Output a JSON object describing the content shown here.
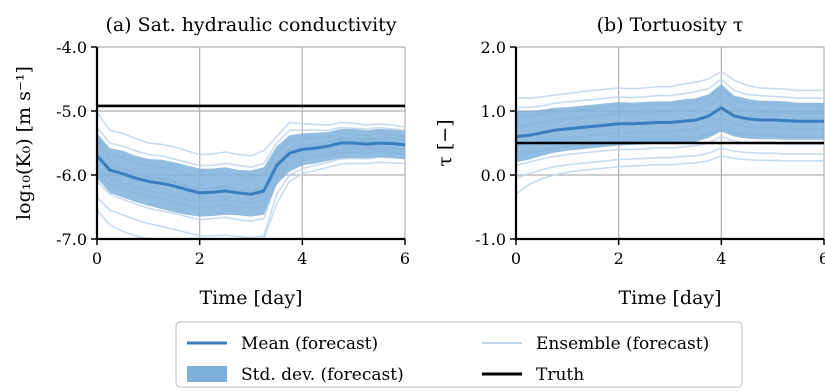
{
  "colors": {
    "mean": "#3a7ebf",
    "std": "#7fb0db",
    "ensemble": "#c3d7ee",
    "truth": "#000000",
    "grid": "#b0b0b0"
  },
  "legend": {
    "mean": "Mean (forecast)",
    "ensemble": "Ensemble (forecast)",
    "std": "Std. dev. (forecast)",
    "truth": "Truth"
  },
  "chart_data": [
    {
      "type": "line",
      "title": "(a) Sat. hydraulic conductivity",
      "xlabel": "Time [day]",
      "ylabel": "log₁₀(K₀)  [m s⁻¹]",
      "xlim": [
        0,
        6
      ],
      "ylim": [
        -7.0,
        -4.0
      ],
      "xticks": [
        "0",
        "2",
        "4",
        "6"
      ],
      "xtick_values": [
        0,
        2,
        4,
        6
      ],
      "yticks": [
        "-4.0",
        "-5.0",
        "-6.0",
        "-7.0"
      ],
      "ytick_values": [
        -4.0,
        -5.0,
        -6.0,
        -7.0
      ],
      "grid": true,
      "x": [
        0,
        0.25,
        0.5,
        0.75,
        1.0,
        1.25,
        1.5,
        1.75,
        2.0,
        2.25,
        2.5,
        2.75,
        3.0,
        3.25,
        3.5,
        3.75,
        4.0,
        4.25,
        4.5,
        4.75,
        5.0,
        5.25,
        5.5,
        5.75,
        6.0
      ],
      "series": [
        {
          "name": "Mean (forecast)",
          "values": [
            -5.7,
            -5.92,
            -5.98,
            -6.05,
            -6.1,
            -6.13,
            -6.17,
            -6.23,
            -6.28,
            -6.27,
            -6.25,
            -6.28,
            -6.3,
            -6.25,
            -5.85,
            -5.66,
            -5.6,
            -5.58,
            -5.55,
            -5.5,
            -5.5,
            -5.52,
            -5.5,
            -5.51,
            -5.53
          ]
        },
        {
          "name": "Std. dev. (forecast)",
          "lower": [
            -6.05,
            -6.28,
            -6.35,
            -6.42,
            -6.48,
            -6.53,
            -6.58,
            -6.62,
            -6.65,
            -6.64,
            -6.62,
            -6.63,
            -6.65,
            -6.62,
            -6.15,
            -5.95,
            -5.85,
            -5.82,
            -5.78,
            -5.74,
            -5.73,
            -5.74,
            -5.72,
            -5.73,
            -5.75
          ],
          "upper": [
            -5.35,
            -5.58,
            -5.62,
            -5.7,
            -5.75,
            -5.76,
            -5.8,
            -5.85,
            -5.9,
            -5.9,
            -5.88,
            -5.92,
            -5.93,
            -5.88,
            -5.55,
            -5.38,
            -5.35,
            -5.34,
            -5.33,
            -5.28,
            -5.28,
            -5.3,
            -5.28,
            -5.29,
            -5.31
          ]
        },
        {
          "name": "Truth",
          "values": [
            -4.92,
            -4.92,
            -4.92,
            -4.92,
            -4.92,
            -4.92,
            -4.92,
            -4.92,
            -4.92,
            -4.92,
            -4.92,
            -4.92,
            -4.92,
            -4.92,
            -4.92,
            -4.92,
            -4.92,
            -4.92,
            -4.92,
            -4.92,
            -4.92,
            -4.92,
            -4.92,
            -4.92,
            -4.92
          ]
        }
      ],
      "ensemble": [
        [
          -5.02,
          -5.3,
          -5.35,
          -5.43,
          -5.5,
          -5.52,
          -5.56,
          -5.62,
          -5.68,
          -5.67,
          -5.64,
          -5.68,
          -5.7,
          -5.62,
          -5.4,
          -5.18,
          -5.2,
          -5.21,
          -5.22,
          -5.18,
          -5.19,
          -5.22,
          -5.2,
          -5.22,
          -5.25
        ],
        [
          -5.25,
          -5.5,
          -5.55,
          -5.62,
          -5.68,
          -5.7,
          -5.75,
          -5.8,
          -5.85,
          -5.85,
          -5.82,
          -5.85,
          -5.88,
          -5.82,
          -5.5,
          -5.3,
          -5.3,
          -5.3,
          -5.3,
          -5.26,
          -5.27,
          -5.28,
          -5.26,
          -5.28,
          -5.3
        ],
        [
          -5.45,
          -5.68,
          -5.72,
          -5.8,
          -5.85,
          -5.88,
          -5.92,
          -5.98,
          -6.02,
          -6.0,
          -5.99,
          -6.02,
          -6.05,
          -6.0,
          -5.65,
          -5.45,
          -5.42,
          -5.42,
          -5.4,
          -5.36,
          -5.37,
          -5.38,
          -5.36,
          -5.38,
          -5.4
        ],
        [
          -5.65,
          -5.85,
          -5.92,
          -6.0,
          -6.05,
          -6.08,
          -6.12,
          -6.17,
          -6.22,
          -6.2,
          -6.18,
          -6.22,
          -6.25,
          -6.2,
          -5.8,
          -5.6,
          -5.55,
          -5.52,
          -5.5,
          -5.45,
          -5.46,
          -5.48,
          -5.46,
          -5.48,
          -5.5
        ],
        [
          -5.85,
          -6.05,
          -6.12,
          -6.2,
          -6.25,
          -6.28,
          -6.32,
          -6.38,
          -6.42,
          -6.4,
          -6.38,
          -6.42,
          -6.45,
          -6.4,
          -5.95,
          -5.72,
          -5.65,
          -5.62,
          -5.6,
          -5.55,
          -5.55,
          -5.58,
          -5.55,
          -5.57,
          -5.6
        ],
        [
          -6.1,
          -6.3,
          -6.38,
          -6.45,
          -6.52,
          -6.56,
          -6.6,
          -6.65,
          -6.7,
          -6.68,
          -6.66,
          -6.7,
          -6.72,
          -6.68,
          -6.1,
          -5.85,
          -5.78,
          -5.72,
          -5.7,
          -5.65,
          -5.65,
          -5.66,
          -5.63,
          -5.65,
          -5.68
        ],
        [
          -6.35,
          -6.55,
          -6.62,
          -6.7,
          -6.76,
          -6.8,
          -6.85,
          -6.9,
          -6.95,
          -6.95,
          -6.94,
          -6.96,
          -6.98,
          -6.95,
          -6.3,
          -6.0,
          -5.9,
          -5.85,
          -5.8,
          -5.75,
          -5.74,
          -5.75,
          -5.72,
          -5.73,
          -5.75
        ],
        [
          -6.55,
          -6.78,
          -6.88,
          -6.95,
          -7.0,
          -7.0,
          -7.0,
          -7.0,
          -7.0,
          -7.0,
          -7.0,
          -7.0,
          -7.0,
          -7.0,
          -6.45,
          -6.1,
          -5.98,
          -5.93,
          -5.88,
          -5.83,
          -5.82,
          -5.82,
          -5.8,
          -5.81,
          -5.82
        ],
        [
          -5.35,
          -5.78,
          -5.88,
          -5.97,
          -6.02,
          -6.06,
          -6.1,
          -6.2,
          -6.26,
          -6.26,
          -6.24,
          -6.27,
          -6.3,
          -6.28,
          -5.9,
          -5.62,
          -5.55,
          -5.5,
          -5.48,
          -5.42,
          -5.42,
          -5.44,
          -5.42,
          -5.43,
          -5.45
        ],
        [
          -5.95,
          -6.15,
          -6.2,
          -6.28,
          -6.33,
          -6.38,
          -6.43,
          -6.48,
          -6.52,
          -6.5,
          -6.48,
          -6.5,
          -6.52,
          -6.5,
          -6.05,
          -5.8,
          -5.72,
          -5.68,
          -5.66,
          -5.6,
          -5.6,
          -5.62,
          -5.6,
          -5.62,
          -5.64
        ]
      ]
    },
    {
      "type": "line",
      "title": "(b) Tortuosity τ",
      "xlabel": "Time [day]",
      "ylabel": "τ  [−]",
      "xlim": [
        0,
        6
      ],
      "ylim": [
        -1.0,
        2.0
      ],
      "xticks": [
        "0",
        "2",
        "4",
        "6"
      ],
      "xtick_values": [
        0,
        2,
        4,
        6
      ],
      "yticks": [
        "2.0",
        "1.0",
        "0.0",
        "-1.0"
      ],
      "ytick_values": [
        2.0,
        1.0,
        0.0,
        -1.0
      ],
      "grid": true,
      "x": [
        0,
        0.25,
        0.5,
        0.75,
        1.0,
        1.25,
        1.5,
        1.75,
        2.0,
        2.25,
        2.5,
        2.75,
        3.0,
        3.25,
        3.5,
        3.75,
        4.0,
        4.25,
        4.5,
        4.75,
        5.0,
        5.25,
        5.5,
        5.75,
        6.0
      ],
      "series": [
        {
          "name": "Mean (forecast)",
          "values": [
            0.6,
            0.62,
            0.66,
            0.7,
            0.72,
            0.74,
            0.76,
            0.78,
            0.8,
            0.8,
            0.81,
            0.82,
            0.82,
            0.84,
            0.86,
            0.92,
            1.05,
            0.92,
            0.88,
            0.86,
            0.86,
            0.85,
            0.84,
            0.84,
            0.84
          ]
        },
        {
          "name": "Std. dev. (forecast)",
          "lower": [
            0.2,
            0.24,
            0.3,
            0.35,
            0.38,
            0.4,
            0.42,
            0.44,
            0.46,
            0.47,
            0.48,
            0.49,
            0.49,
            0.5,
            0.52,
            0.58,
            0.68,
            0.6,
            0.57,
            0.56,
            0.56,
            0.55,
            0.55,
            0.55,
            0.55
          ],
          "upper": [
            1.0,
            1.0,
            1.02,
            1.05,
            1.06,
            1.08,
            1.1,
            1.12,
            1.14,
            1.13,
            1.14,
            1.15,
            1.15,
            1.18,
            1.2,
            1.26,
            1.42,
            1.24,
            1.19,
            1.16,
            1.16,
            1.15,
            1.13,
            1.13,
            1.13
          ]
        },
        {
          "name": "Truth",
          "values": [
            0.5,
            0.5,
            0.5,
            0.5,
            0.5,
            0.5,
            0.5,
            0.5,
            0.5,
            0.5,
            0.5,
            0.5,
            0.5,
            0.5,
            0.5,
            0.5,
            0.5,
            0.5,
            0.5,
            0.5,
            0.5,
            0.5,
            0.5,
            0.5,
            0.5
          ]
        }
      ],
      "ensemble": [
        [
          1.2,
          1.2,
          1.22,
          1.25,
          1.27,
          1.3,
          1.32,
          1.34,
          1.36,
          1.35,
          1.36,
          1.38,
          1.38,
          1.42,
          1.45,
          1.5,
          1.62,
          1.48,
          1.4,
          1.36,
          1.35,
          1.34,
          1.32,
          1.32,
          1.32
        ],
        [
          1.05,
          1.06,
          1.08,
          1.12,
          1.14,
          1.16,
          1.18,
          1.2,
          1.22,
          1.21,
          1.22,
          1.24,
          1.24,
          1.27,
          1.3,
          1.35,
          1.5,
          1.32,
          1.26,
          1.24,
          1.23,
          1.22,
          1.2,
          1.2,
          1.2
        ],
        [
          0.9,
          0.92,
          0.95,
          0.98,
          1.0,
          1.02,
          1.04,
          1.06,
          1.08,
          1.08,
          1.09,
          1.1,
          1.1,
          1.12,
          1.15,
          1.2,
          1.35,
          1.18,
          1.12,
          1.1,
          1.09,
          1.08,
          1.07,
          1.07,
          1.07
        ],
        [
          0.75,
          0.78,
          0.82,
          0.85,
          0.88,
          0.9,
          0.92,
          0.94,
          0.96,
          0.96,
          0.97,
          0.98,
          0.98,
          1.0,
          1.03,
          1.08,
          1.22,
          1.05,
          1.0,
          0.98,
          0.98,
          0.97,
          0.96,
          0.96,
          0.96
        ],
        [
          0.6,
          0.62,
          0.66,
          0.7,
          0.72,
          0.74,
          0.76,
          0.78,
          0.8,
          0.8,
          0.81,
          0.82,
          0.82,
          0.84,
          0.86,
          0.92,
          1.05,
          0.92,
          0.88,
          0.86,
          0.86,
          0.85,
          0.84,
          0.84,
          0.84
        ],
        [
          0.45,
          0.48,
          0.52,
          0.56,
          0.58,
          0.6,
          0.62,
          0.64,
          0.66,
          0.66,
          0.67,
          0.68,
          0.68,
          0.7,
          0.72,
          0.78,
          0.9,
          0.8,
          0.76,
          0.75,
          0.74,
          0.73,
          0.72,
          0.72,
          0.72
        ],
        [
          0.3,
          0.34,
          0.38,
          0.42,
          0.45,
          0.47,
          0.49,
          0.51,
          0.53,
          0.53,
          0.54,
          0.55,
          0.55,
          0.57,
          0.59,
          0.64,
          0.75,
          0.66,
          0.63,
          0.62,
          0.62,
          0.61,
          0.6,
          0.6,
          0.6
        ],
        [
          0.15,
          0.2,
          0.25,
          0.29,
          0.32,
          0.34,
          0.36,
          0.38,
          0.4,
          0.4,
          0.41,
          0.42,
          0.42,
          0.44,
          0.46,
          0.5,
          0.6,
          0.53,
          0.5,
          0.49,
          0.49,
          0.48,
          0.48,
          0.48,
          0.48
        ],
        [
          -0.05,
          0.02,
          0.08,
          0.13,
          0.16,
          0.18,
          0.2,
          0.22,
          0.24,
          0.25,
          0.26,
          0.27,
          0.27,
          0.29,
          0.3,
          0.34,
          0.42,
          0.37,
          0.35,
          0.34,
          0.34,
          0.33,
          0.33,
          0.33,
          0.33
        ],
        [
          -0.3,
          -0.15,
          -0.06,
          0.0,
          0.04,
          0.07,
          0.09,
          0.11,
          0.13,
          0.14,
          0.15,
          0.16,
          0.16,
          0.18,
          0.19,
          0.22,
          0.3,
          0.26,
          0.24,
          0.23,
          0.23,
          0.22,
          0.22,
          0.22,
          0.22
        ]
      ]
    }
  ]
}
